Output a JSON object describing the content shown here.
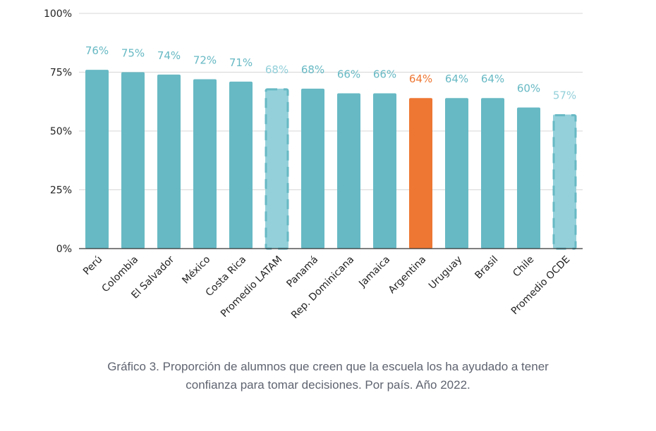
{
  "chart_data": {
    "type": "bar",
    "categories": [
      "Perú",
      "Colombia",
      "El Salvador",
      "México",
      "Costa Rica",
      "Promedio LATAM",
      "Panamá",
      "Rep. Dominicana",
      "Jamaica",
      "Argentina",
      "Uruguay",
      "Brasil",
      "Chile",
      "Promedio OCDE"
    ],
    "values": [
      76,
      75,
      74,
      72,
      71,
      68,
      68,
      66,
      66,
      64,
      64,
      64,
      60,
      57
    ],
    "data_labels": [
      "76%",
      "75%",
      "74%",
      "72%",
      "71%",
      "68%",
      "68%",
      "66%",
      "66%",
      "64%",
      "64%",
      "64%",
      "60%",
      "57%"
    ],
    "highlight": "Argentina",
    "averages": [
      "Promedio LATAM",
      "Promedio OCDE"
    ],
    "ylim": [
      0,
      100
    ],
    "yticks": [
      0,
      25,
      50,
      75,
      100
    ],
    "ytick_labels": [
      "0%",
      "25%",
      "50%",
      "75%",
      "100%"
    ],
    "grid": true,
    "colors": {
      "bar": "#67b9c4",
      "highlight": "#ee7733",
      "average_fill": "#93d0da",
      "average_border": "#67b9c4",
      "label": "#67b9c4",
      "average_label": "#93d0da"
    }
  },
  "caption": {
    "line1": "Gráfico 3. Proporción de alumnos que creen que la escuela los ha ayudado a tener",
    "line2": "confianza para tomar decisiones. Por país. Año 2022."
  }
}
